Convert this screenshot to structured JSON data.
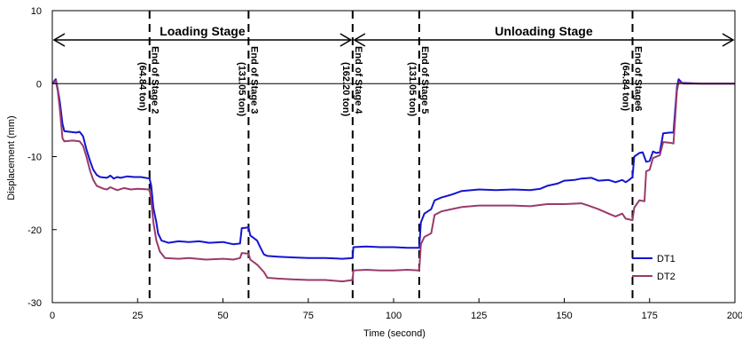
{
  "chart_data": {
    "type": "line",
    "xlabel": "Time (second)",
    "ylabel": "Displacement (mm)",
    "xlim": [
      0,
      200
    ],
    "ylim": [
      -30,
      10
    ],
    "xticks": [
      0,
      25,
      50,
      75,
      100,
      125,
      150,
      175,
      200
    ],
    "yticks": [
      10,
      0,
      -10,
      -20,
      -30
    ],
    "legend_position": "bottom-right",
    "colors": {
      "DT1": "#1414d2",
      "DT2": "#9a3a6a"
    },
    "stages": [
      {
        "label": "Loading Stage",
        "x_start": 0,
        "x_end": 88
      },
      {
        "label": "Unloading Stage",
        "x_start": 88,
        "x_end": 200
      }
    ],
    "markers": [
      {
        "x": 28.5,
        "line1": "End of Stage 2",
        "line2": "(64.84 ton)"
      },
      {
        "x": 57.5,
        "line1": "End of Stage 3",
        "line2": "(131.05 ton)"
      },
      {
        "x": 88,
        "line1": "End of Stage 4",
        "line2": "(162.20 ton)"
      },
      {
        "x": 107.5,
        "line1": "End of Stage 5",
        "line2": "(131.05 ton)"
      },
      {
        "x": 170,
        "line1": "End of Stage6",
        "line2": "(64.84 ton)"
      }
    ],
    "series": [
      {
        "name": "DT1",
        "points": [
          [
            0,
            0
          ],
          [
            0.5,
            0.3
          ],
          [
            1,
            0.6
          ],
          [
            1.6,
            -0.8
          ],
          [
            2.2,
            -2.5
          ],
          [
            3,
            -5.5
          ],
          [
            3.5,
            -6.5
          ],
          [
            5,
            -6.6
          ],
          [
            7,
            -6.7
          ],
          [
            8,
            -6.6
          ],
          [
            9,
            -7.2
          ],
          [
            10,
            -9
          ],
          [
            11,
            -10.5
          ],
          [
            12,
            -11.8
          ],
          [
            13,
            -12.5
          ],
          [
            14,
            -12.8
          ],
          [
            16,
            -12.9
          ],
          [
            17,
            -12.6
          ],
          [
            18,
            -13
          ],
          [
            19,
            -12.8
          ],
          [
            20,
            -12.9
          ],
          [
            22,
            -12.7
          ],
          [
            24,
            -12.8
          ],
          [
            26,
            -12.8
          ],
          [
            28.5,
            -13
          ],
          [
            29,
            -14
          ],
          [
            29.6,
            -17
          ],
          [
            30.5,
            -19
          ],
          [
            31,
            -20.5
          ],
          [
            32,
            -21.5
          ],
          [
            34,
            -21.8
          ],
          [
            37,
            -21.6
          ],
          [
            40,
            -21.7
          ],
          [
            43,
            -21.6
          ],
          [
            46,
            -21.8
          ],
          [
            50,
            -21.7
          ],
          [
            53,
            -22
          ],
          [
            55,
            -21.9
          ],
          [
            55.5,
            -19.8
          ],
          [
            57.5,
            -19.7
          ],
          [
            58,
            -20.8
          ],
          [
            60,
            -21.5
          ],
          [
            61,
            -22.5
          ],
          [
            62,
            -23.4
          ],
          [
            63,
            -23.6
          ],
          [
            66,
            -23.7
          ],
          [
            70,
            -23.8
          ],
          [
            75,
            -23.9
          ],
          [
            80,
            -23.9
          ],
          [
            85,
            -24
          ],
          [
            88,
            -23.9
          ],
          [
            88.2,
            -22.4
          ],
          [
            92,
            -22.3
          ],
          [
            96,
            -22.4
          ],
          [
            100,
            -22.4
          ],
          [
            104,
            -22.5
          ],
          [
            107.5,
            -22.5
          ],
          [
            108,
            -19
          ],
          [
            109,
            -17.8
          ],
          [
            111,
            -17.2
          ],
          [
            112,
            -16
          ],
          [
            114,
            -15.6
          ],
          [
            117,
            -15.2
          ],
          [
            120,
            -14.7
          ],
          [
            125,
            -14.5
          ],
          [
            130,
            -14.6
          ],
          [
            135,
            -14.5
          ],
          [
            140,
            -14.6
          ],
          [
            143,
            -14.4
          ],
          [
            145,
            -14
          ],
          [
            148,
            -13.7
          ],
          [
            150,
            -13.3
          ],
          [
            153,
            -13.2
          ],
          [
            155,
            -13
          ],
          [
            158,
            -12.9
          ],
          [
            160,
            -13.3
          ],
          [
            163,
            -13.2
          ],
          [
            165,
            -13.5
          ],
          [
            167,
            -13.2
          ],
          [
            168,
            -13.5
          ],
          [
            169,
            -13.2
          ],
          [
            170,
            -12.8
          ],
          [
            170.5,
            -10
          ],
          [
            172,
            -9.5
          ],
          [
            173,
            -9.4
          ],
          [
            174,
            -10.7
          ],
          [
            175,
            -10.6
          ],
          [
            176,
            -9.3
          ],
          [
            177,
            -9.5
          ],
          [
            178,
            -9.4
          ],
          [
            179,
            -6.8
          ],
          [
            181,
            -6.7
          ],
          [
            182,
            -6.7
          ],
          [
            183,
            -0.5
          ],
          [
            183.5,
            0.6
          ],
          [
            184.5,
            0.1
          ],
          [
            190,
            0
          ],
          [
            200,
            0
          ]
        ]
      },
      {
        "name": "DT2",
        "points": [
          [
            0,
            0
          ],
          [
            0.5,
            0.2
          ],
          [
            1,
            0.4
          ],
          [
            1.6,
            -1
          ],
          [
            2.2,
            -3.5
          ],
          [
            3,
            -7.5
          ],
          [
            3.5,
            -7.9
          ],
          [
            6,
            -7.8
          ],
          [
            8,
            -7.9
          ],
          [
            9,
            -8.5
          ],
          [
            10,
            -10
          ],
          [
            11,
            -11.8
          ],
          [
            12,
            -13.2
          ],
          [
            13,
            -14
          ],
          [
            15,
            -14.4
          ],
          [
            16,
            -14.5
          ],
          [
            17,
            -14.2
          ],
          [
            19,
            -14.6
          ],
          [
            21,
            -14.3
          ],
          [
            23,
            -14.5
          ],
          [
            25,
            -14.4
          ],
          [
            28.5,
            -14.5
          ],
          [
            29,
            -16
          ],
          [
            29.6,
            -19
          ],
          [
            30.5,
            -21.5
          ],
          [
            31.5,
            -23
          ],
          [
            33,
            -23.9
          ],
          [
            37,
            -24
          ],
          [
            40,
            -23.9
          ],
          [
            45,
            -24.1
          ],
          [
            50,
            -24
          ],
          [
            53,
            -24.1
          ],
          [
            55,
            -23.9
          ],
          [
            55.5,
            -23.2
          ],
          [
            57.5,
            -23.3
          ],
          [
            58,
            -24.1
          ],
          [
            60,
            -24.8
          ],
          [
            62,
            -25.8
          ],
          [
            63,
            -26.6
          ],
          [
            66,
            -26.7
          ],
          [
            70,
            -26.8
          ],
          [
            75,
            -26.9
          ],
          [
            80,
            -26.9
          ],
          [
            85,
            -27.1
          ],
          [
            88,
            -26.9
          ],
          [
            88.2,
            -25.6
          ],
          [
            92,
            -25.5
          ],
          [
            96,
            -25.6
          ],
          [
            100,
            -25.6
          ],
          [
            104,
            -25.5
          ],
          [
            107.5,
            -25.6
          ],
          [
            108,
            -22
          ],
          [
            109,
            -21
          ],
          [
            111,
            -20.5
          ],
          [
            112,
            -18
          ],
          [
            114,
            -17.5
          ],
          [
            118,
            -17.1
          ],
          [
            120,
            -16.9
          ],
          [
            125,
            -16.7
          ],
          [
            130,
            -16.7
          ],
          [
            135,
            -16.7
          ],
          [
            140,
            -16.8
          ],
          [
            145,
            -16.5
          ],
          [
            150,
            -16.5
          ],
          [
            155,
            -16.4
          ],
          [
            157,
            -16.7
          ],
          [
            160,
            -17.2
          ],
          [
            163,
            -17.8
          ],
          [
            165,
            -18.2
          ],
          [
            167,
            -17.8
          ],
          [
            168,
            -18.5
          ],
          [
            170,
            -18.7
          ],
          [
            170.5,
            -17
          ],
          [
            172,
            -16
          ],
          [
            173.5,
            -16.1
          ],
          [
            174,
            -12
          ],
          [
            175,
            -11.8
          ],
          [
            176,
            -10.2
          ],
          [
            178,
            -9.8
          ],
          [
            179,
            -8
          ],
          [
            181,
            -8.1
          ],
          [
            182,
            -8.2
          ],
          [
            183,
            -1
          ],
          [
            183.5,
            0.2
          ],
          [
            185,
            0
          ],
          [
            190,
            0
          ],
          [
            200,
            0
          ]
        ]
      }
    ]
  }
}
